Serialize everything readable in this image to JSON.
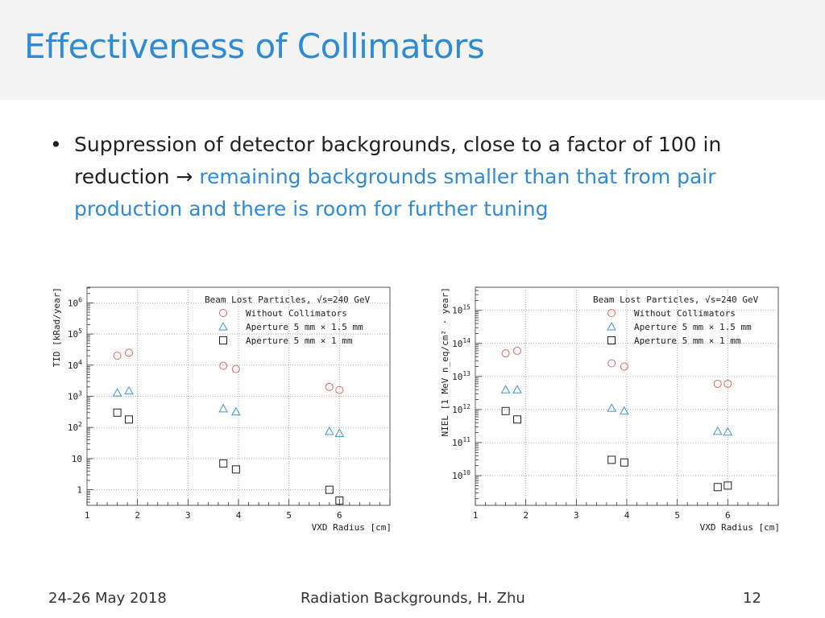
{
  "slide": {
    "title": "Effectiveness of Collimators",
    "bullet": {
      "text_plain": "Suppression of detector backgrounds, close to a factor of 100 in reduction → ",
      "text_highlight": "remaining backgrounds smaller than that from pair production and there is room for further tuning"
    },
    "footer": {
      "date": "24-26 May 2018",
      "center": "Radiation Backgrounds, H. Zhu",
      "page": "12"
    }
  },
  "colors": {
    "accent": "#2e8bd8",
    "without": "#e06666",
    "aperture15": "#3d9ad1",
    "aperture1": "#222222"
  },
  "chart_data": [
    {
      "type": "scatter",
      "ylabel": "TID [kRad/year]",
      "xlabel": "VXD Radius [cm]",
      "yscale": "log",
      "ylim_exp": [
        -0.5,
        6.5
      ],
      "xlim": [
        1,
        7
      ],
      "xticks": [
        "1",
        "2",
        "3",
        "4",
        "5",
        "6"
      ],
      "yticks": [
        {
          "exp": 0,
          "base": "1",
          "sup": ""
        },
        {
          "exp": 1,
          "base": "10",
          "sup": ""
        },
        {
          "exp": 2,
          "base": "10",
          "sup": "2"
        },
        {
          "exp": 3,
          "base": "10",
          "sup": "3"
        },
        {
          "exp": 4,
          "base": "10",
          "sup": "4"
        },
        {
          "exp": 5,
          "base": "10",
          "sup": "5"
        },
        {
          "exp": 6,
          "base": "10",
          "sup": "6"
        }
      ],
      "legend": {
        "title": "Beam Lost Particles, √s=240 GeV",
        "entries": [
          "Without Collimators",
          "Aperture 5 mm × 1.5 mm",
          "Aperture 5 mm × 1 mm"
        ]
      },
      "series": [
        {
          "name": "Without Collimators",
          "marker": "circle",
          "x": [
            1.6,
            1.83,
            3.7,
            3.95,
            5.8,
            6.0
          ],
          "y": [
            20000,
            25000,
            9500,
            7500,
            2000,
            1600
          ]
        },
        {
          "name": "Aperture 5 mm × 1.5 mm",
          "marker": "triangle",
          "x": [
            1.6,
            1.83,
            3.7,
            3.95,
            5.8,
            6.0
          ],
          "y": [
            1300,
            1500,
            400,
            320,
            75,
            65
          ]
        },
        {
          "name": "Aperture 5 mm × 1 mm",
          "marker": "square",
          "x": [
            1.6,
            1.83,
            3.7,
            3.95,
            5.8,
            6.0
          ],
          "y": [
            300,
            180,
            7,
            4.5,
            1.0,
            0.45
          ]
        }
      ]
    },
    {
      "type": "scatter",
      "ylabel": "NIEL [1 MeV n_eq/cm² · year]",
      "xlabel": "VXD Radius [cm]",
      "yscale": "log",
      "ylim_exp": [
        9.1,
        15.7
      ],
      "xlim": [
        1,
        7
      ],
      "xticks": [
        "1",
        "2",
        "3",
        "4",
        "5",
        "6"
      ],
      "yticks": [
        {
          "exp": 10,
          "base": "10",
          "sup": "10"
        },
        {
          "exp": 11,
          "base": "10",
          "sup": "11"
        },
        {
          "exp": 12,
          "base": "10",
          "sup": "12"
        },
        {
          "exp": 13,
          "base": "10",
          "sup": "13"
        },
        {
          "exp": 14,
          "base": "10",
          "sup": "14"
        },
        {
          "exp": 15,
          "base": "10",
          "sup": "15"
        }
      ],
      "legend": {
        "title": "Beam Lost Particles, √s=240 GeV",
        "entries": [
          "Without Collimators",
          "Aperture 5 mm × 1.5 mm",
          "Aperture 5 mm × 1 mm"
        ]
      },
      "series": [
        {
          "name": "Without Collimators",
          "marker": "circle",
          "x": [
            1.6,
            1.83,
            3.7,
            3.95,
            5.8,
            6.0
          ],
          "y": [
            50000000000000.0,
            60000000000000.0,
            25000000000000.0,
            20000000000000.0,
            6000000000000.0,
            6000000000000.0
          ]
        },
        {
          "name": "Aperture 5 mm × 1.5 mm",
          "marker": "triangle",
          "x": [
            1.6,
            1.83,
            3.7,
            3.95,
            5.8,
            6.0
          ],
          "y": [
            4000000000000.0,
            4000000000000.0,
            1100000000000.0,
            900000000000.0,
            220000000000.0,
            210000000000.0
          ]
        },
        {
          "name": "Aperture 5 mm × 1 mm",
          "marker": "square",
          "x": [
            1.6,
            1.83,
            3.7,
            3.95,
            5.8,
            6.0
          ],
          "y": [
            900000000000.0,
            500000000000.0,
            30000000000.0,
            25000000000.0,
            4500000000.0,
            5000000000.0
          ]
        }
      ]
    }
  ]
}
